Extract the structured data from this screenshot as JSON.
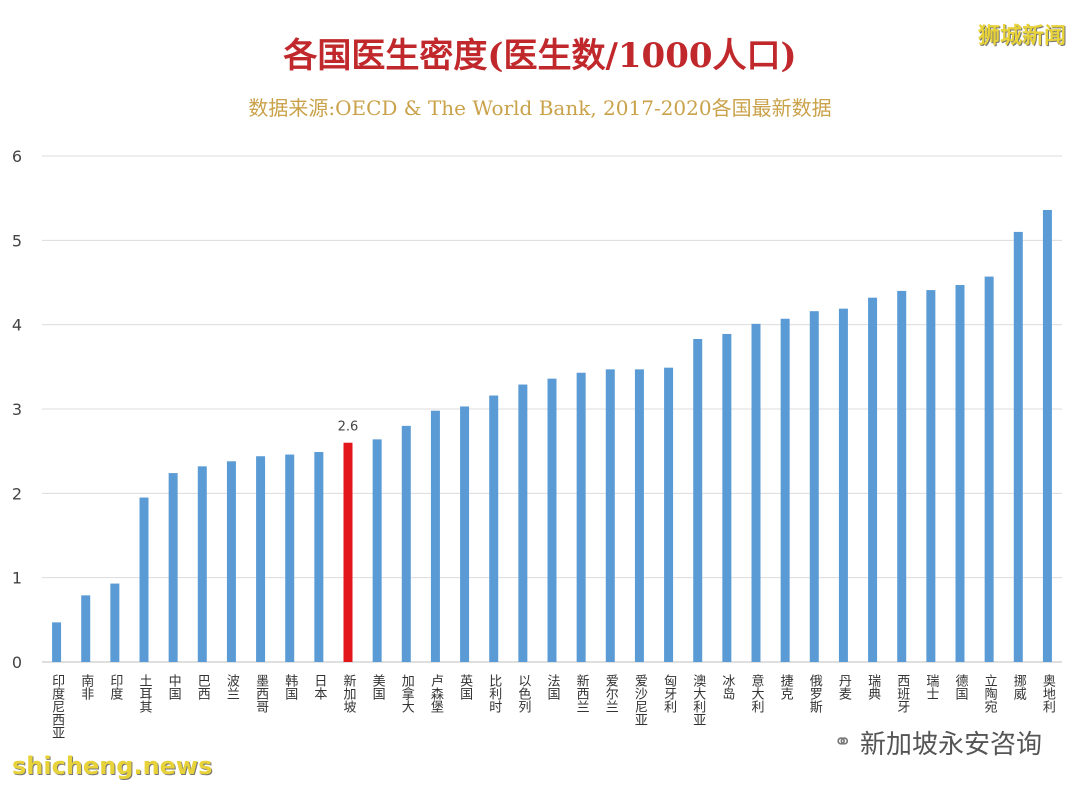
{
  "watermarks": {
    "top_right": "狮城新闻",
    "bottom_left": "shicheng.news",
    "bottom_right": "新加坡永安咨询",
    "bottom_right_icon": "wechat-bubble-icon"
  },
  "chart_data": {
    "type": "bar",
    "title": "各国医生密度(医生数/1000人口)",
    "subtitle": "数据来源:OECD & The World Bank, 2017-2020各国最新数据",
    "xlabel": "",
    "ylabel": "",
    "ylim": [
      0,
      6
    ],
    "yticks": [
      0,
      1,
      2,
      3,
      4,
      5,
      6
    ],
    "grid": true,
    "colors": {
      "default": "#5b9bd5",
      "highlight": "#e2161b"
    },
    "highlight_category": "新加坡",
    "categories": [
      "印度尼西亚",
      "南非",
      "印度",
      "土耳其",
      "中国",
      "巴西",
      "波兰",
      "墨西哥",
      "韩国",
      "日本",
      "新加坡",
      "美国",
      "加拿大",
      "卢森堡",
      "英国",
      "比利时",
      "以色列",
      "法国",
      "新西兰",
      "爱尔兰",
      "爱沙尼亚",
      "匈牙利",
      "澳大利亚",
      "冰岛",
      "意大利",
      "捷克",
      "俄罗斯",
      "丹麦",
      "瑞典",
      "西班牙",
      "瑞士",
      "德国",
      "立陶宛",
      "挪威",
      "奥地利"
    ],
    "values": [
      0.47,
      0.79,
      0.93,
      1.95,
      2.24,
      2.32,
      2.38,
      2.44,
      2.46,
      2.49,
      2.6,
      2.64,
      2.8,
      2.98,
      3.03,
      3.16,
      3.29,
      3.36,
      3.43,
      3.47,
      3.47,
      3.49,
      3.83,
      3.89,
      4.01,
      4.07,
      4.16,
      4.19,
      4.32,
      4.4,
      4.41,
      4.47,
      4.57,
      5.1,
      5.36
    ],
    "data_labels": [
      {
        "category": "新加坡",
        "text": "2.6"
      }
    ]
  }
}
